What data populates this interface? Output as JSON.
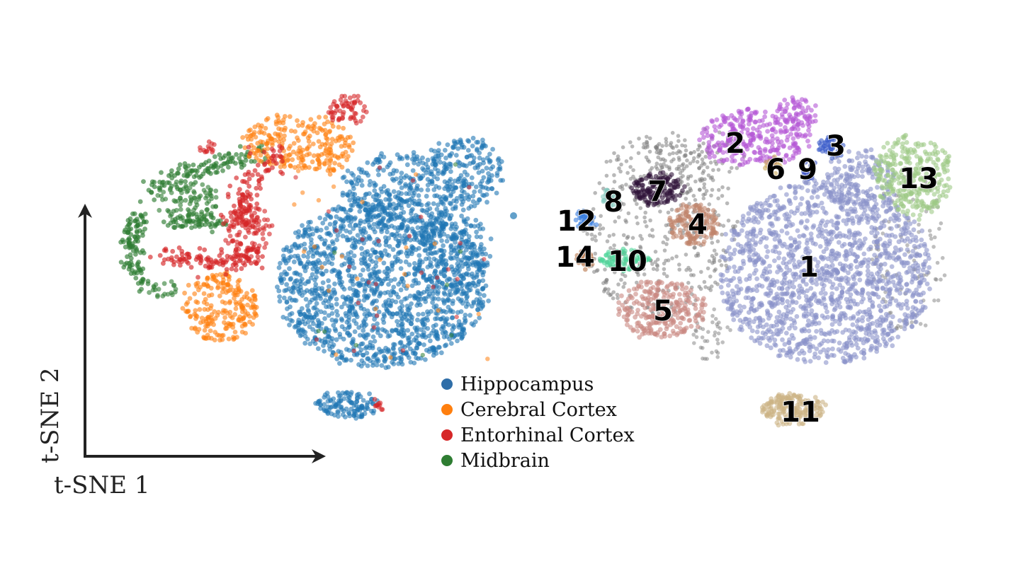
{
  "chart_data": [
    {
      "type": "scatter",
      "title": "",
      "xlabel": "t-SNE 1",
      "ylabel": "t-SNE 2",
      "legend": {
        "placement": "bottom-right",
        "entries": [
          {
            "label": "Hippocampus",
            "color": "#2f6ea8"
          },
          {
            "label": "Cerebral Cortex",
            "color": "#ff7f0e"
          },
          {
            "label": "Entorhinal Cortex",
            "color": "#d62728"
          },
          {
            "label": "Midbrain",
            "color": "#2e7d32"
          }
        ]
      },
      "series": [
        {
          "name": "Hippocampus",
          "color": "#1f77b4"
        },
        {
          "name": "Cerebral Cortex",
          "color": "#ff7f0e"
        },
        {
          "name": "Entorhinal Cortex",
          "color": "#d62728"
        },
        {
          "name": "Midbrain",
          "color": "#2e7d32"
        }
      ]
    },
    {
      "type": "scatter",
      "title": "",
      "clusters": [
        {
          "label": "1",
          "color": "#8a93c9"
        },
        {
          "label": "2",
          "color": "#b457d6"
        },
        {
          "label": "3",
          "color": "#3b5bc9"
        },
        {
          "label": "4",
          "color": "#c0836a"
        },
        {
          "label": "5",
          "color": "#c98882"
        },
        {
          "label": "6",
          "color": "#c9a85a"
        },
        {
          "label": "7",
          "color": "#2e1238"
        },
        {
          "label": "8",
          "color": "#86c9bf"
        },
        {
          "label": "9",
          "color": "#4fd69a"
        },
        {
          "label": "10",
          "color": "#3f57c4"
        },
        {
          "label": "11",
          "color": "#cbb283"
        },
        {
          "label": "12",
          "color": "#3a7ee0"
        },
        {
          "label": "13",
          "color": "#9fc987"
        },
        {
          "label": "14",
          "color": "#b8744a"
        }
      ],
      "unassigned_color": "#7f7f7f"
    }
  ]
}
